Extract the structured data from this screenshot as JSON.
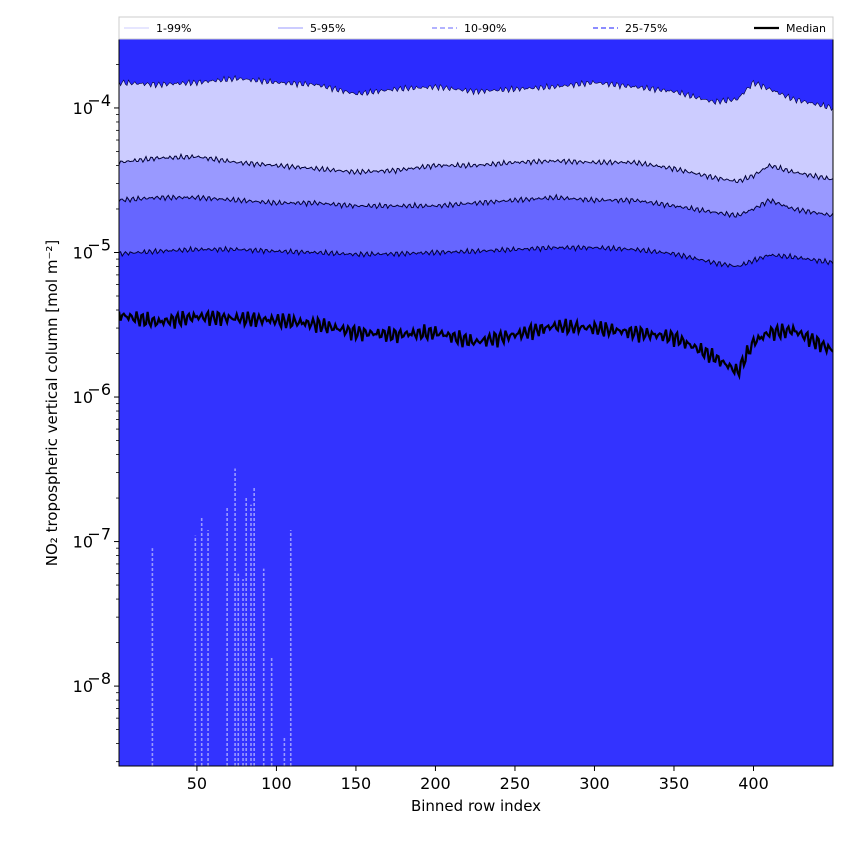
{
  "chart_data": {
    "type": "area",
    "xlabel": "Binned row index",
    "ylabel": "NO₂ tropospheric vertical column [mol m⁻²]",
    "yscale": "log",
    "xlim": [
      1,
      450
    ],
    "ylim": [
      2.8e-09,
      0.0003
    ],
    "x_ticks": [
      50,
      100,
      150,
      200,
      250,
      300,
      350,
      400
    ],
    "y_ticks": [
      {
        "exp": -8,
        "mantissa_label": "10",
        "exp_label": "−8"
      },
      {
        "exp": -7,
        "mantissa_label": "10",
        "exp_label": "−7"
      },
      {
        "exp": -6,
        "mantissa_label": "10",
        "exp_label": "−6"
      },
      {
        "exp": -5,
        "mantissa_label": "10",
        "exp_label": "−5"
      },
      {
        "exp": -4,
        "mantissa_label": "10",
        "exp_label": "−4"
      }
    ],
    "legend_placement": "top, above plot, horizontal",
    "legend": [
      "1-99%",
      "5-95%",
      "10-90%",
      "25-75%",
      "Median"
    ],
    "x": [
      1,
      25,
      50,
      75,
      100,
      125,
      150,
      175,
      200,
      225,
      250,
      275,
      300,
      325,
      350,
      375,
      390,
      400,
      410,
      425,
      450
    ],
    "series": [
      {
        "name": "1-99%",
        "color": "#ccccff",
        "upper": [
          0.00015,
          0.000145,
          0.00015,
          0.00016,
          0.00015,
          0.000145,
          0.000125,
          0.000135,
          0.00014,
          0.00013,
          0.000135,
          0.00014,
          0.00015,
          0.00014,
          0.00013,
          0.00011,
          0.000115,
          0.00015,
          0.000135,
          0.000115,
          0.0001
        ]
      },
      {
        "name": "5-95%",
        "color": "#9999ff",
        "upper": [
          4.2e-05,
          4.5e-05,
          4.6e-05,
          4.2e-05,
          4e-05,
          3.8e-05,
          3.6e-05,
          3.7e-05,
          4e-05,
          4e-05,
          4.2e-05,
          4.3e-05,
          4.2e-05,
          4.2e-05,
          3.8e-05,
          3.3e-05,
          3.1e-05,
          3.4e-05,
          4e-05,
          3.6e-05,
          3.2e-05
        ]
      },
      {
        "name": "10-90%",
        "color": "#6666ff",
        "upper": [
          2.3e-05,
          2.4e-05,
          2.4e-05,
          2.3e-05,
          2.2e-05,
          2.2e-05,
          2.1e-05,
          2.1e-05,
          2.1e-05,
          2.2e-05,
          2.3e-05,
          2.4e-05,
          2.3e-05,
          2.3e-05,
          2.1e-05,
          1.9e-05,
          1.8e-05,
          2e-05,
          2.3e-05,
          2e-05,
          1.8e-05
        ]
      },
      {
        "name": "25-75%",
        "color": "#3333ff",
        "upper": [
          9.8e-06,
          1.02e-05,
          1.05e-05,
          1.05e-05,
          1.02e-05,
          1e-05,
          9.7e-06,
          9.8e-06,
          1e-05,
          1.02e-05,
          1.05e-05,
          1.08e-05,
          1.08e-05,
          1.05e-05,
          9.8e-06,
          8.5e-06,
          8e-06,
          8.8e-06,
          9.6e-06,
          9.3e-06,
          8.5e-06
        ]
      },
      {
        "name": "Median",
        "color": "#000000",
        "values": [
          3.7e-06,
          3.3e-06,
          3.6e-06,
          3.5e-06,
          3.4e-06,
          3.2e-06,
          2.8e-06,
          2.7e-06,
          2.8e-06,
          2.4e-06,
          2.7e-06,
          3.1e-06,
          3e-06,
          2.8e-06,
          2.6e-06,
          1.9e-06,
          1.5e-06,
          2.4e-06,
          2.8e-06,
          2.9e-06,
          2.1e-06
        ]
      }
    ],
    "lower_band_floor_color": "#2b2bff",
    "lower_envelope_spikes": [
      {
        "x": 22,
        "y": 9e-08
      },
      {
        "x": 49,
        "y": 1.1e-07
      },
      {
        "x": 53,
        "y": 1.5e-07
      },
      {
        "x": 57,
        "y": 1.2e-07
      },
      {
        "x": 69,
        "y": 1.75e-07
      },
      {
        "x": 74,
        "y": 3.2e-07
      },
      {
        "x": 76,
        "y": 6e-08
      },
      {
        "x": 79,
        "y": 5.5e-08
      },
      {
        "x": 81,
        "y": 2e-07
      },
      {
        "x": 84,
        "y": 1.8e-07
      },
      {
        "x": 86,
        "y": 2.4e-07
      },
      {
        "x": 92,
        "y": 6.5e-08
      },
      {
        "x": 97,
        "y": 1.6e-08
      },
      {
        "x": 105,
        "y": 4.5e-09
      },
      {
        "x": 109,
        "y": 1.2e-07
      }
    ]
  }
}
